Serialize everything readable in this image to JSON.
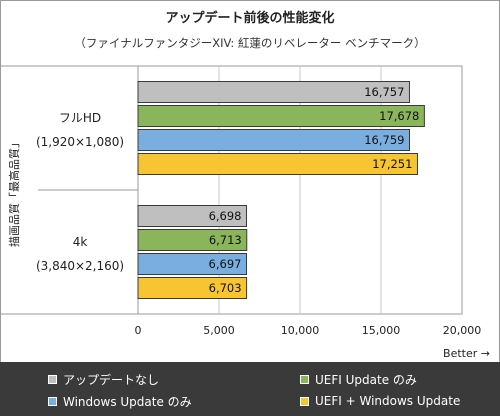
{
  "chart_data": {
    "type": "bar",
    "orientation": "horizontal",
    "title": "アップデート前後の性能変化",
    "subtitle": "（ファイナルファンタジーXIV: 紅蓮のリベレーター ベンチマーク）",
    "ylabel": "描画品質「最高品質」",
    "xlabel": "Better →",
    "xlim": [
      0,
      20000
    ],
    "xticks": [
      "0",
      "5,000",
      "10,000",
      "15,000",
      "20,000"
    ],
    "grid": true,
    "legend_position": "bottom",
    "categories": [
      {
        "name": "フルHD",
        "sub": "(1,920×1,080)"
      },
      {
        "name": "4k",
        "sub": "(3,840×2,160)"
      }
    ],
    "series": [
      {
        "name": "アップデートなし",
        "color": "#bfbfbf",
        "values": [
          16757,
          6698
        ],
        "labels": [
          "16,757",
          "6,698"
        ]
      },
      {
        "name": "UEFI Update のみ",
        "color": "#8ab55a",
        "values": [
          17678,
          6713
        ],
        "labels": [
          "17,678",
          "6,713"
        ]
      },
      {
        "name": "Windows Update のみ",
        "color": "#7aaee0",
        "values": [
          16759,
          6697
        ],
        "labels": [
          "16,759",
          "6,697"
        ]
      },
      {
        "name": "UEFI + Windows Update",
        "color": "#f7c531",
        "values": [
          17251,
          6703
        ],
        "labels": [
          "17,251",
          "6,703"
        ]
      }
    ]
  }
}
